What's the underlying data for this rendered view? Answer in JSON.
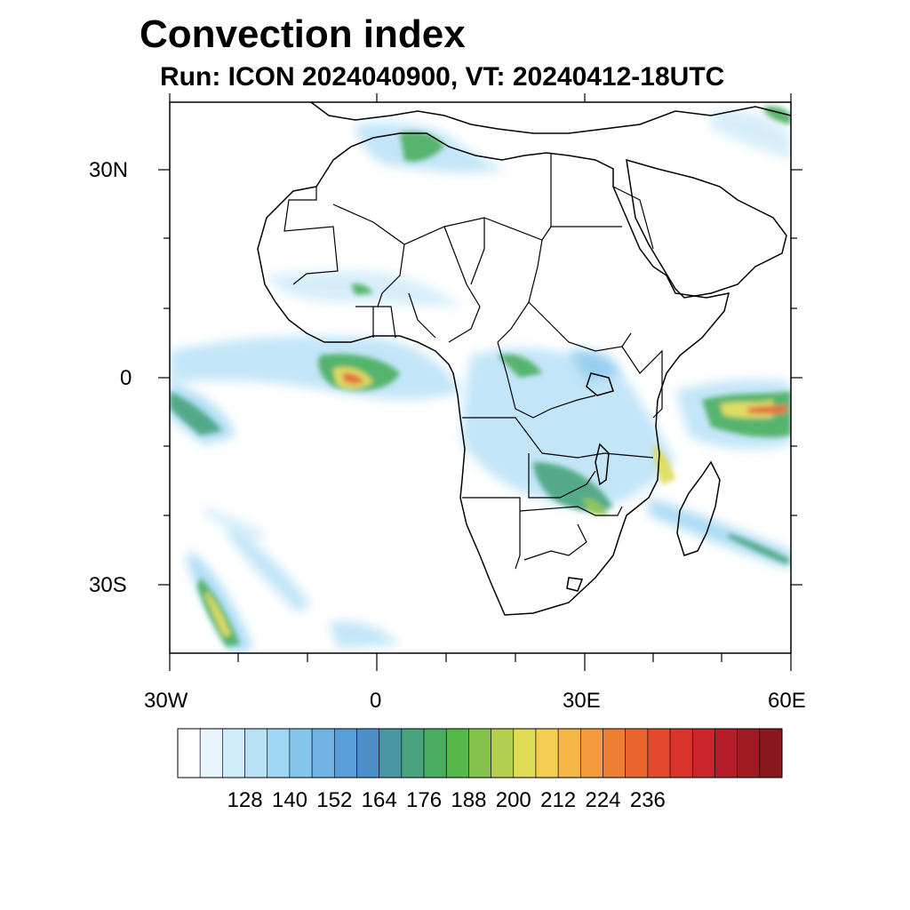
{
  "figure": {
    "title": "Convection index",
    "subtitle": "Run: ICON 2024040900,  VT: 20240412-18UTC"
  },
  "map": {
    "projection": "lat-lon",
    "region": "Africa",
    "lon_range": [
      -30,
      60
    ],
    "lat_range": [
      -40,
      40
    ],
    "lat_labels": [
      "30N",
      "0",
      "30S"
    ],
    "lon_labels": [
      "30W",
      "0",
      "30E",
      "60E"
    ],
    "coastline_color": "#000000"
  },
  "colorbar": {
    "orientation": "horizontal",
    "labels": [
      "128",
      "140",
      "152",
      "164",
      "176",
      "188",
      "200",
      "212",
      "224",
      "236"
    ],
    "colors": [
      "#ffffff",
      "#e8f4fc",
      "#d0ebf9",
      "#b8e1f6",
      "#9ed6f3",
      "#86c6ec",
      "#6fb2e3",
      "#5a9ed9",
      "#4d8fc9",
      "#4a97a4",
      "#49a47d",
      "#49ae5e",
      "#56b84b",
      "#86c34c",
      "#b4cf4f",
      "#e0dc55",
      "#f5cd55",
      "#f5b648",
      "#f29a3c",
      "#ee7e34",
      "#e9632f",
      "#e34a2d",
      "#d9342c",
      "#c9252b",
      "#b51d28",
      "#a01a24",
      "#8a161e"
    ]
  }
}
